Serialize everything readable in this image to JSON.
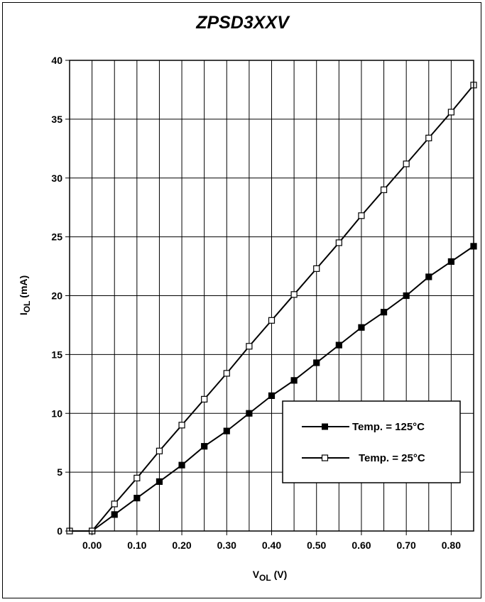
{
  "chart_data": {
    "type": "line",
    "title": "ZPSD3XXV",
    "xlabel": {
      "main": "V",
      "sub": "OL",
      "unit": " (V)"
    },
    "ylabel": {
      "main": "I",
      "sub": "OL",
      "unit": " (mA)"
    },
    "xlim": [
      -0.05,
      0.85
    ],
    "ylim": [
      0,
      40
    ],
    "x_ticks": [
      "0.00",
      "0.10",
      "0.20",
      "0.30",
      "0.40",
      "0.50",
      "0.60",
      "0.70",
      "0.80"
    ],
    "y_ticks": [
      "0",
      "5",
      "10",
      "15",
      "20",
      "25",
      "30",
      "35",
      "40"
    ],
    "grid": true,
    "legend_position": "lower-right",
    "series": [
      {
        "name": "Temp. = 125°C",
        "marker": "filled-square",
        "color": "#000000",
        "x": [
          0.0,
          0.05,
          0.1,
          0.15,
          0.2,
          0.25,
          0.3,
          0.35,
          0.4,
          0.45,
          0.5,
          0.55,
          0.6,
          0.65,
          0.7,
          0.75,
          0.8,
          0.85
        ],
        "y": [
          0.0,
          1.4,
          2.8,
          4.2,
          5.6,
          7.2,
          8.5,
          10.0,
          11.5,
          12.8,
          14.3,
          15.8,
          17.3,
          18.6,
          20.0,
          21.6,
          22.9,
          24.2
        ]
      },
      {
        "name": "Temp. = 25°C",
        "marker": "open-square",
        "color": "#000000",
        "x": [
          -0.05,
          0.0,
          0.05,
          0.1,
          0.15,
          0.2,
          0.25,
          0.3,
          0.35,
          0.4,
          0.45,
          0.5,
          0.55,
          0.6,
          0.65,
          0.7,
          0.75,
          0.8,
          0.85
        ],
        "y": [
          0.0,
          0.0,
          2.3,
          4.5,
          6.8,
          9.0,
          11.2,
          13.4,
          15.7,
          17.9,
          20.1,
          22.3,
          24.5,
          26.8,
          29.0,
          31.2,
          33.4,
          35.6,
          37.9
        ]
      }
    ]
  }
}
